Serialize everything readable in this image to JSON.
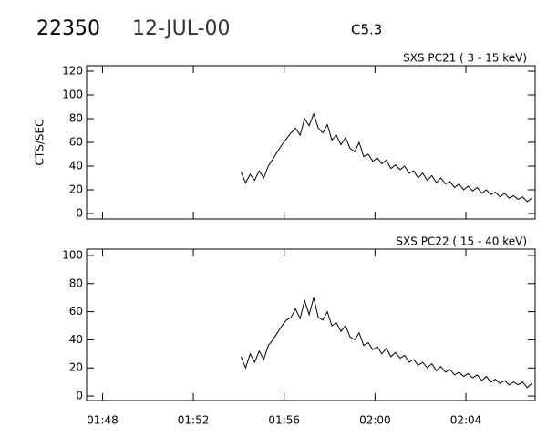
{
  "header": {
    "id": "22350",
    "date": "12-JUL-00",
    "class": "C5.3"
  },
  "chart_data": [
    {
      "type": "line",
      "title": "SXS PC21  (  3 - 15 keV)",
      "y_label": "CTS/SEC",
      "xlim": [
        107.3,
        127.05
      ],
      "xticks": [
        108,
        112,
        116,
        120,
        124
      ],
      "ylim": [
        -4.6,
        124.6
      ],
      "yticks": [
        0,
        20,
        40,
        60,
        80,
        100,
        120
      ],
      "series": [
        {
          "color": "#000000",
          "x": [
            114.1,
            114.3,
            114.5,
            114.7,
            114.9,
            115.1,
            115.3,
            115.5,
            115.7,
            115.9,
            116.1,
            116.3,
            116.5,
            116.7,
            116.9,
            117.1,
            117.3,
            117.5,
            117.7,
            117.9,
            118.1,
            118.3,
            118.5,
            118.7,
            118.9,
            119.1,
            119.3,
            119.5,
            119.7,
            119.9,
            120.1,
            120.3,
            120.5,
            120.7,
            120.9,
            121.1,
            121.3,
            121.5,
            121.7,
            121.9,
            122.1,
            122.3,
            122.5,
            122.7,
            122.9,
            123.1,
            123.3,
            123.5,
            123.7,
            123.9,
            124.1,
            124.3,
            124.5,
            124.7,
            124.9,
            125.1,
            125.3,
            125.5,
            125.7,
            125.9,
            126.1,
            126.3,
            126.5,
            126.7,
            126.9
          ],
          "values": [
            35,
            26,
            33,
            28,
            36,
            30,
            40,
            46,
            52,
            58,
            63,
            68,
            72,
            66,
            80,
            74,
            84,
            72,
            68,
            75,
            62,
            66,
            58,
            64,
            55,
            52,
            60,
            48,
            50,
            44,
            47,
            42,
            45,
            38,
            41,
            37,
            40,
            34,
            36,
            30,
            34,
            28,
            32,
            26,
            30,
            25,
            27,
            22,
            25,
            20,
            23,
            19,
            22,
            17,
            20,
            16,
            18,
            14,
            17,
            13,
            15,
            12,
            14,
            10,
            13
          ]
        }
      ]
    },
    {
      "type": "line",
      "title": "SXS PC22  ( 15 - 40 keV)",
      "xlim": [
        107.3,
        127.05
      ],
      "xticks": [
        {
          "value": 108,
          "label": "01:48"
        },
        {
          "value": 112,
          "label": "01:52"
        },
        {
          "value": 116,
          "label": "01:56"
        },
        {
          "value": 120,
          "label": "02:00"
        },
        {
          "value": 124,
          "label": "02:04"
        }
      ],
      "ylim": [
        -3.2,
        104.5
      ],
      "yticks": [
        0,
        20,
        40,
        60,
        80,
        100
      ],
      "series": [
        {
          "color": "#000000",
          "x": [
            114.1,
            114.3,
            114.5,
            114.7,
            114.9,
            115.1,
            115.3,
            115.5,
            115.7,
            115.9,
            116.1,
            116.3,
            116.5,
            116.7,
            116.9,
            117.1,
            117.3,
            117.5,
            117.7,
            117.9,
            118.1,
            118.3,
            118.5,
            118.7,
            118.9,
            119.1,
            119.3,
            119.5,
            119.7,
            119.9,
            120.1,
            120.3,
            120.5,
            120.7,
            120.9,
            121.1,
            121.3,
            121.5,
            121.7,
            121.9,
            122.1,
            122.3,
            122.5,
            122.7,
            122.9,
            123.1,
            123.3,
            123.5,
            123.7,
            123.9,
            124.1,
            124.3,
            124.5,
            124.7,
            124.9,
            125.1,
            125.3,
            125.5,
            125.7,
            125.9,
            126.1,
            126.3,
            126.5,
            126.7,
            126.9
          ],
          "values": [
            28,
            20,
            30,
            24,
            32,
            26,
            36,
            40,
            45,
            50,
            54,
            56,
            62,
            55,
            68,
            58,
            70,
            56,
            54,
            60,
            50,
            52,
            46,
            50,
            42,
            40,
            45,
            36,
            38,
            33,
            35,
            30,
            34,
            28,
            31,
            27,
            29,
            24,
            26,
            22,
            24,
            20,
            23,
            18,
            21,
            17,
            19,
            15,
            17,
            14,
            16,
            13,
            15,
            11,
            14,
            10,
            12,
            9,
            11,
            8,
            10,
            8,
            10,
            6,
            9
          ]
        }
      ]
    }
  ]
}
